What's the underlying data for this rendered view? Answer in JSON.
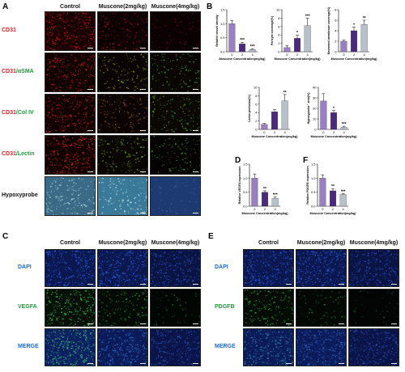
{
  "panels": {
    "A": {
      "letter": "A",
      "columns": [
        "Control",
        "Muscone(2mg/kg)",
        "Muscone(4mg/kg)"
      ],
      "rows": [
        {
          "parts": [
            {
              "text": "CD31",
              "color": "red"
            }
          ]
        },
        {
          "parts": [
            {
              "text": "CD31",
              "color": "red"
            },
            {
              "text": "/αSMA",
              "color": "green"
            }
          ]
        },
        {
          "parts": [
            {
              "text": "CD31",
              "color": "red"
            },
            {
              "text": "/Col IV",
              "color": "green"
            }
          ]
        },
        {
          "parts": [
            {
              "text": "CD31",
              "color": "red"
            },
            {
              "text": "/Lectin",
              "color": "green"
            }
          ]
        },
        {
          "parts": [
            {
              "text": "Hypoxyprobe",
              "color": "black"
            }
          ]
        }
      ]
    },
    "B": {
      "letter": "B"
    },
    "C": {
      "letter": "C",
      "columns": [
        "Control",
        "Muscone(2mg/kg)",
        "Muscone(4mg/kg)"
      ],
      "rows": [
        {
          "parts": [
            {
              "text": "DAPI",
              "color": "blue"
            }
          ]
        },
        {
          "parts": [
            {
              "text": "VEGFA",
              "color": "green"
            }
          ]
        },
        {
          "parts": [
            {
              "text": "MERGE",
              "color": "blue"
            }
          ]
        }
      ]
    },
    "D": {
      "letter": "D"
    },
    "E": {
      "letter": "E",
      "columns": [
        "Control",
        "Muscone(2mg/kg)",
        "Muscone(4mg/kg)"
      ],
      "rows": [
        {
          "parts": [
            {
              "text": "DAPI",
              "color": "blue"
            }
          ]
        },
        {
          "parts": [
            {
              "text": "PDGFB",
              "color": "green"
            }
          ]
        },
        {
          "parts": [
            {
              "text": "MERGE",
              "color": "blue"
            }
          ]
        }
      ]
    },
    "F": {
      "letter": "F"
    }
  },
  "colors": {
    "red": "#d8202a",
    "green": "#1f9a3a",
    "blue": "#1f6ac9",
    "black": "#111111",
    "bar_colors": [
      "#9b7fc4",
      "#4b2a7d",
      "#b8c1c9"
    ]
  },
  "chart_data": [
    {
      "id": "B1",
      "type": "bar",
      "categories": [
        "0",
        "2",
        "4"
      ],
      "values": [
        1.0,
        0.28,
        0.08
      ],
      "errors": [
        0.12,
        0.06,
        0.03
      ],
      "sig": [
        "",
        "***",
        "***"
      ],
      "ylabel": "Relative vessel density",
      "xlabel": "Muscone Concentration(mg/kg)",
      "ylim": [
        0,
        1.5
      ],
      "yticks": [
        "0.0",
        "0.5",
        "1.0",
        "1.5"
      ]
    },
    {
      "id": "B2",
      "type": "bar",
      "categories": [
        "0",
        "2",
        "4"
      ],
      "values": [
        1.0,
        3.2,
        6.2
      ],
      "errors": [
        0.5,
        0.8,
        1.8
      ],
      "sig": [
        "",
        "*",
        "***"
      ],
      "ylabel": "Pericyte coverage(%)",
      "xlabel": "Muscone Concentration(mg/kg)",
      "ylim": [
        0,
        10
      ],
      "yticks": [
        "0",
        "2",
        "4",
        "6",
        "8",
        "10"
      ]
    },
    {
      "id": "B3",
      "type": "bar",
      "categories": [
        "0",
        "2",
        "4"
      ],
      "values": [
        2.0,
        4.0,
        5.2
      ],
      "errors": [
        0.2,
        0.7,
        0.8
      ],
      "sig": [
        "",
        "*",
        "**"
      ],
      "ylabel": "Basement membrane coverage(%)",
      "xlabel": "Muscone Concentration(mg/kg)",
      "ylim": [
        0,
        8
      ],
      "yticks": [
        "0",
        "2",
        "4",
        "6",
        "8"
      ]
    },
    {
      "id": "B4",
      "type": "bar",
      "categories": [
        "0",
        "2",
        "4"
      ],
      "values": [
        1.2,
        4.2,
        6.8
      ],
      "errors": [
        0.2,
        0.5,
        1.5
      ],
      "sig": [
        "",
        "",
        "**"
      ],
      "ylabel": "Lectin perfusion(%)",
      "xlabel": "Muscone Concentration(mg/kg)",
      "ylim": [
        0,
        10
      ],
      "yticks": [
        "0",
        "2",
        "4",
        "6",
        "8",
        "10"
      ]
    },
    {
      "id": "B5",
      "type": "bar",
      "categories": [
        "0",
        "2",
        "4"
      ],
      "values": [
        27,
        16,
        2
      ],
      "errors": [
        7,
        2,
        1
      ],
      "sig": [
        "",
        "*",
        "***"
      ],
      "ylabel": "Hypoxyprobe⁺ area(%)",
      "xlabel": "Muscone Concentration(mg/kg)",
      "ylim": [
        0,
        40
      ],
      "yticks": [
        "0",
        "10",
        "20",
        "30",
        "40"
      ]
    },
    {
      "id": "D",
      "type": "bar",
      "categories": [
        "0",
        "2",
        "4"
      ],
      "values": [
        1.0,
        0.5,
        0.28
      ],
      "errors": [
        0.15,
        0.05,
        0.05
      ],
      "sig": [
        "",
        "**",
        "***"
      ],
      "ylabel": "Relative VEGFA expression",
      "xlabel": "Muscone Concentration(mg/kg)",
      "ylim": [
        0,
        1.5
      ],
      "yticks": [
        "0.0",
        "0.5",
        "1.0",
        "1.5"
      ]
    },
    {
      "id": "F",
      "type": "bar",
      "categories": [
        "0",
        "2",
        "4"
      ],
      "values": [
        1.0,
        0.55,
        0.42
      ],
      "errors": [
        0.12,
        0.08,
        0.03
      ],
      "sig": [
        "",
        "**",
        "***"
      ],
      "ylabel": "Relative PDGFB expression",
      "xlabel": "Muscone Concentration(mg/kg)",
      "ylim": [
        0,
        1.5
      ],
      "yticks": [
        "0.0",
        "0.5",
        "1.0",
        "1.5"
      ]
    }
  ]
}
